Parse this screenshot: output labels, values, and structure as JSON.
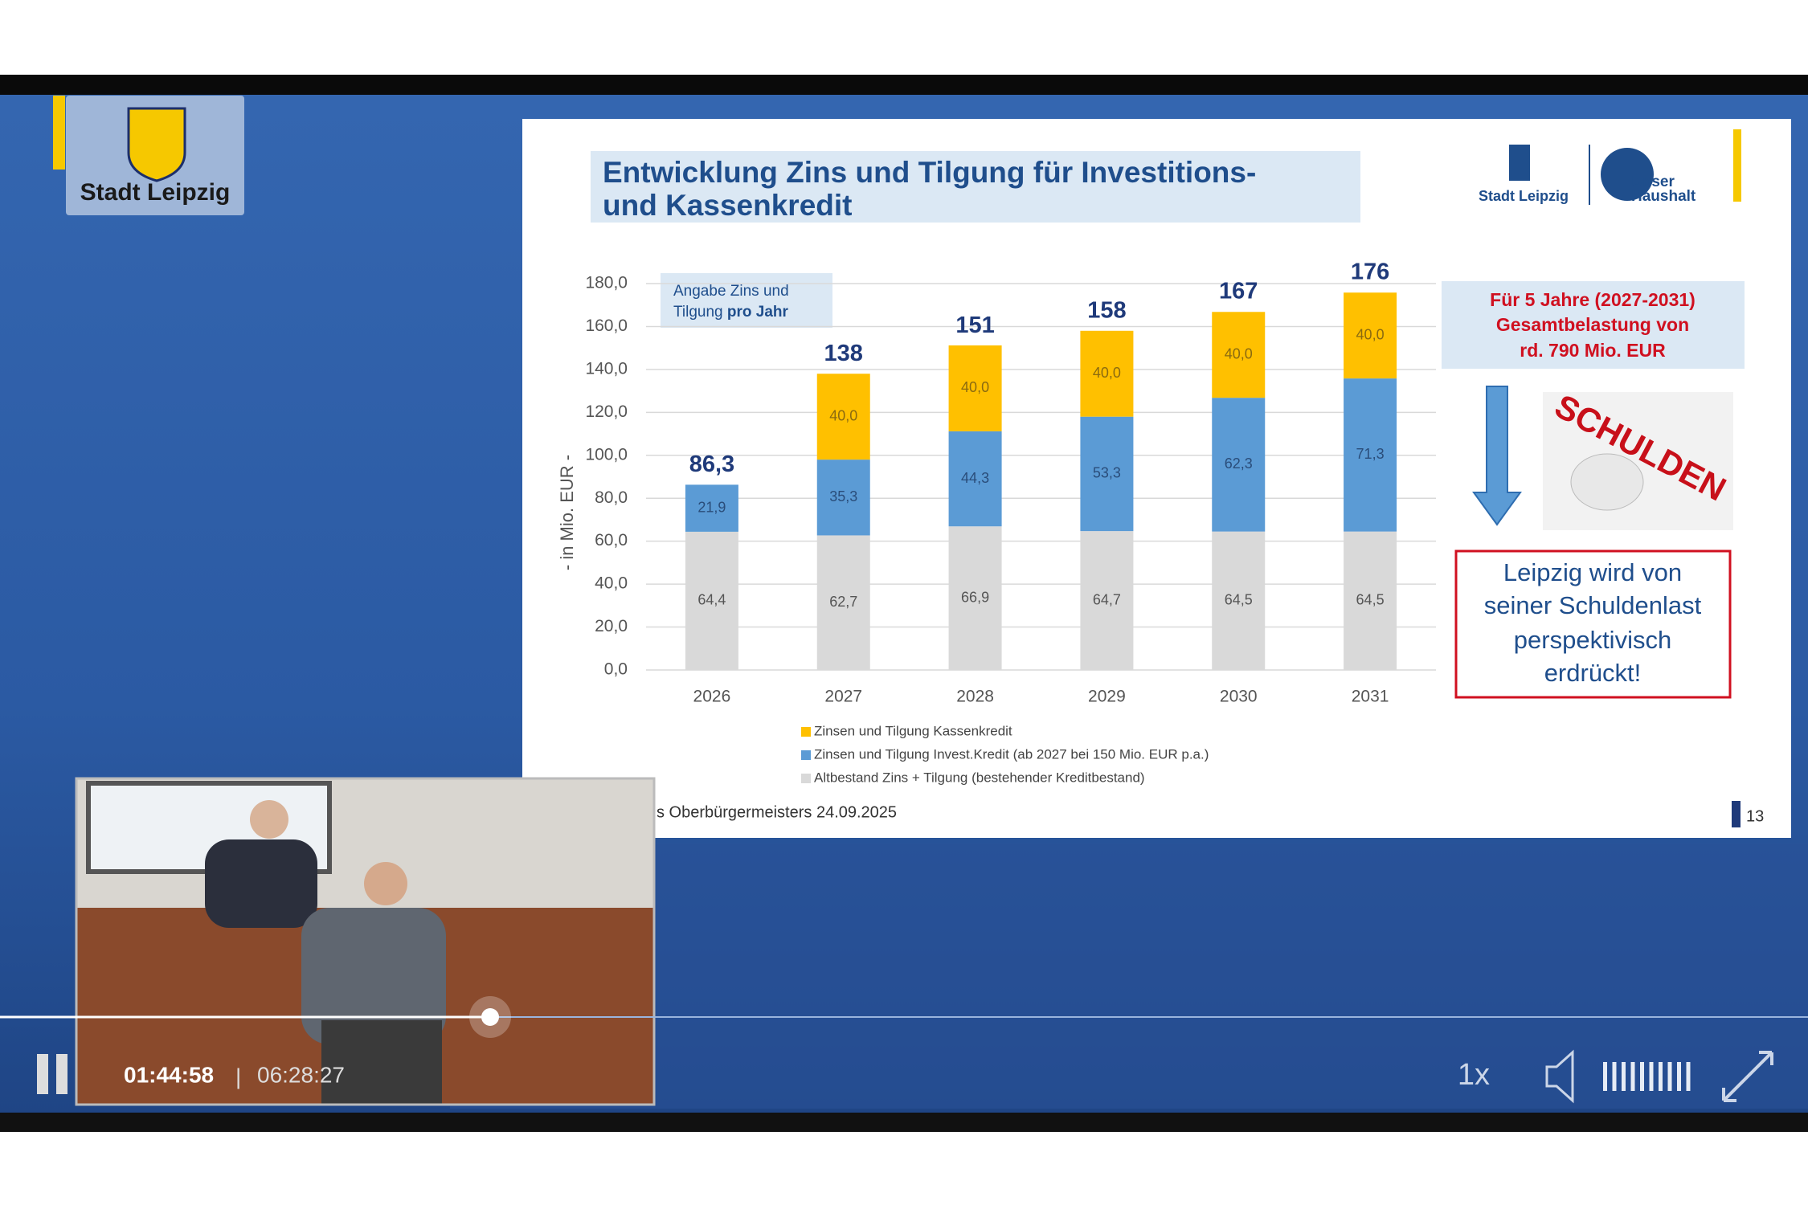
{
  "player": {
    "logo": "Stadt Leipzig",
    "current_time": "01:44:58",
    "separator": "|",
    "duration": "06:28:27",
    "speed": "1x"
  },
  "slide": {
    "title": [
      "Entwicklung Zins und Tilgung für Investitions-",
      "und Kassenkredit"
    ],
    "logo_city": "Stadt Leipzig",
    "logo_budget": [
      "Unser",
      "Haushalt"
    ],
    "annotation": {
      "text": [
        "Angabe Zins und",
        "Tilgung"
      ],
      "emphasis": "pro Jahr"
    },
    "callout": [
      "Für 5 Jahre (2027-2031)",
      "Gesamtbelastung von",
      "rd. 790 Mio. EUR"
    ],
    "graphic_text": "SCHULDEN",
    "warning": [
      "Leipzig wird von",
      "seiner Schuldenlast",
      "perspektivisch",
      "erdrückt!"
    ],
    "footer": "s Oberbürgermeisters 24.09.2025",
    "page": "13"
  },
  "chart_data": {
    "type": "stacked_bar",
    "ylabel": "- in Mio. EUR -",
    "categories": [
      "2026",
      "2027",
      "2028",
      "2029",
      "2030",
      "2031"
    ],
    "series": [
      {
        "name": "Altbestand Zins + Tilgung (bestehender Kreditbestand)",
        "color": "#d9d9d9",
        "values": [
          64.4,
          62.7,
          66.9,
          64.7,
          64.5,
          64.5
        ],
        "value_labels": [
          "64,4",
          "62,7",
          "66,9",
          "64,7",
          "64,5",
          "64,5"
        ]
      },
      {
        "name": "Zinsen und Tilgung Invest.Kredit (ab 2027 bei 150 Mio. EUR p.a.)",
        "color": "#5b9bd5",
        "values": [
          21.9,
          35.3,
          44.3,
          53.3,
          62.3,
          71.3
        ],
        "value_labels": [
          "21,9",
          "35,3",
          "44,3",
          "53,3",
          "62,3",
          "71,3"
        ]
      },
      {
        "name": "Zinsen und Tilgung Kassenkredit",
        "color": "#ffc000",
        "values": [
          null,
          40,
          40,
          40,
          40,
          40
        ],
        "value_labels": [
          null,
          "40,0",
          "40,0",
          "40,0",
          "40,0",
          "40,0"
        ]
      }
    ],
    "totals": [
      86.3,
      138,
      151,
      158,
      167,
      176
    ],
    "total_labels": [
      "86,3",
      "138",
      "151",
      "158",
      "167",
      "176"
    ],
    "ylim": [
      0,
      180
    ],
    "yticks": [
      {
        "value": 0,
        "label": "0,0"
      },
      {
        "value": 20,
        "label": "20,0"
      },
      {
        "value": 40,
        "label": "40,0"
      },
      {
        "value": 60,
        "label": "60,0"
      },
      {
        "value": 80,
        "label": "80,0"
      },
      {
        "value": 100,
        "label": "100,0"
      },
      {
        "value": 120,
        "label": "120,0"
      },
      {
        "value": 140,
        "label": "140,0"
      },
      {
        "value": 160,
        "label": "160,0"
      },
      {
        "value": 180,
        "label": "180,0"
      }
    ],
    "grid": true,
    "legend": "bottom"
  }
}
